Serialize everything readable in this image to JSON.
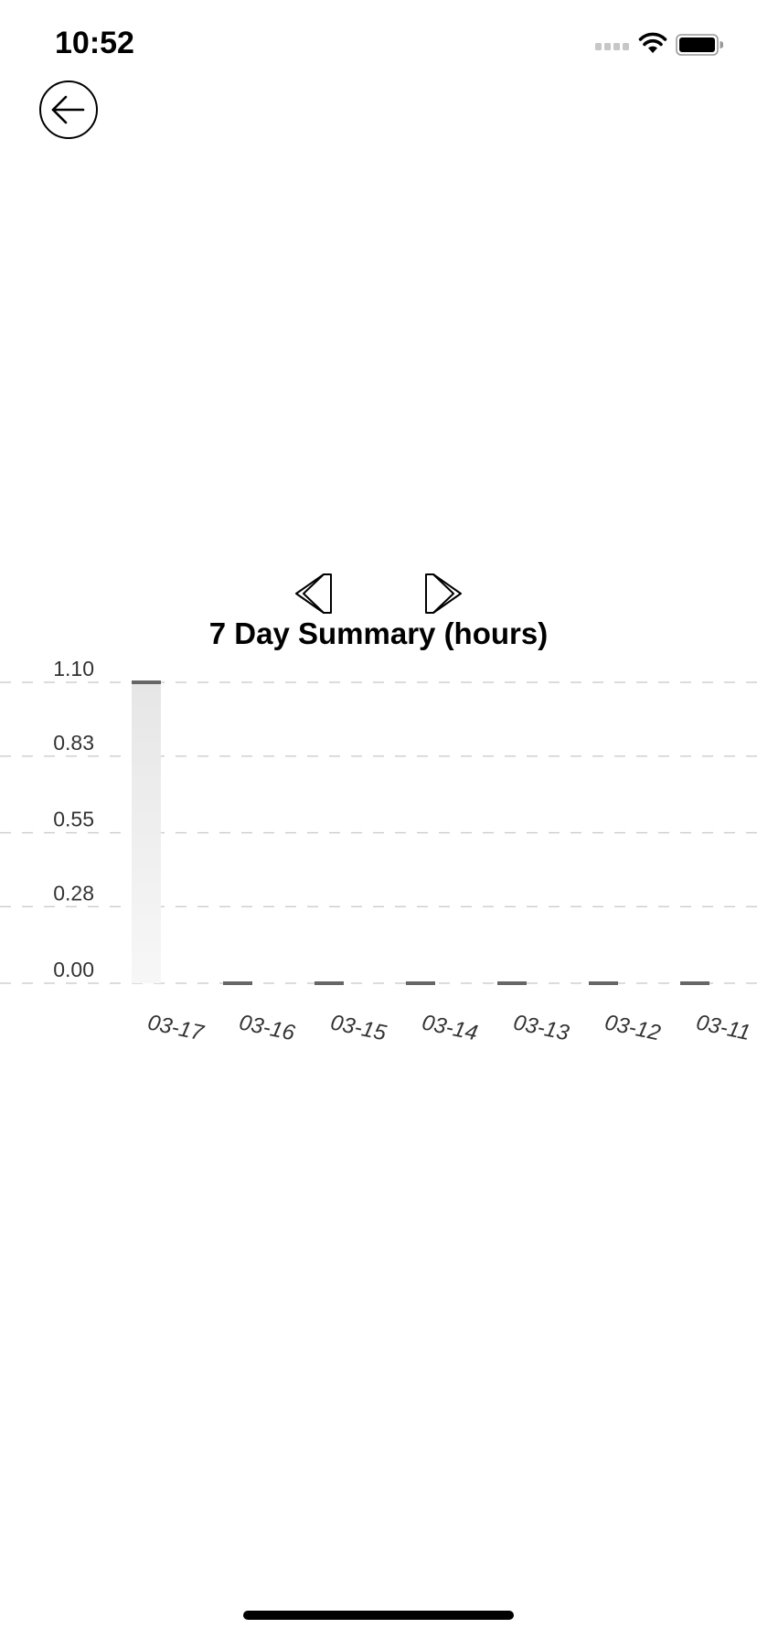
{
  "status_bar": {
    "time": "10:52",
    "signal_icon": "cellular-signal-icon",
    "wifi_icon": "wifi-icon",
    "battery_icon": "battery-icon"
  },
  "nav": {
    "back_icon": "arrow-left-icon",
    "prev_icon": "double-chevron-left-icon",
    "next_icon": "double-chevron-right-icon"
  },
  "colors": {
    "bar_top": "#e6e6e6",
    "bar_bottom": "#f7f7f7",
    "bar_cap": "#666666",
    "grid": "#c8c8c8",
    "tick_text": "#333333"
  },
  "chart_data": {
    "type": "bar",
    "title": "7 Day Summary (hours)",
    "xlabel": "",
    "ylabel": "",
    "categories": [
      "03-17",
      "03-16",
      "03-15",
      "03-14",
      "03-13",
      "03-12",
      "03-11"
    ],
    "values": [
      1.1,
      0,
      0,
      0,
      0,
      0,
      0
    ],
    "ylim": [
      0,
      1.1
    ],
    "y_ticks": [
      "0.00",
      "0.28",
      "0.55",
      "0.83",
      "1.10"
    ],
    "grid": true,
    "grid_style": "dashed"
  }
}
